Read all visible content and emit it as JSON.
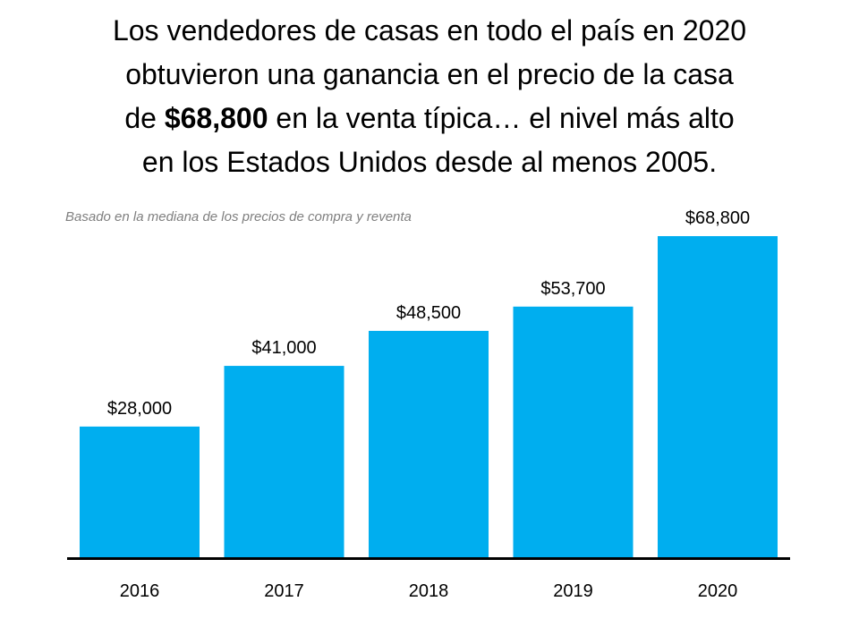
{
  "title": {
    "line1": "Los vendedores de casas en todo el país en 2020",
    "line2": "obtuvieron una ganancia en el precio de la casa",
    "line3_pre": "de ",
    "line3_bold": "$68,800",
    "line3_post": " en la venta típica… el nivel más alto",
    "line4": "en los Estados Unidos desde al menos 2005."
  },
  "chart_data": {
    "type": "bar",
    "subtitle": "Basado en la mediana de los precios de compra y reventa",
    "categories": [
      "2016",
      "2017",
      "2018",
      "2019",
      "2020"
    ],
    "values": [
      28000,
      41000,
      48500,
      53700,
      68800
    ],
    "data_labels": [
      "$28,000",
      "$41,000",
      "$48,500",
      "$53,700",
      "$68,800"
    ],
    "ylim": [
      0,
      68800
    ],
    "grid": false,
    "bar_color": "#00AEEF",
    "axis_color": "#000000"
  }
}
